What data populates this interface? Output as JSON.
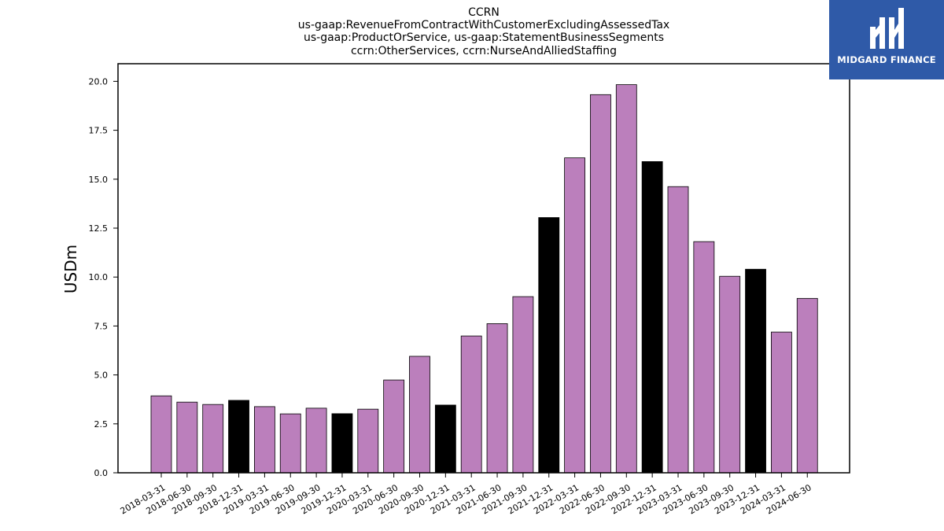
{
  "logo": {
    "text": "MIDGARD FINANCE"
  },
  "chart_data": {
    "type": "bar",
    "title_lines": [
      "CCRN",
      "us-gaap:RevenueFromContractWithCustomerExcludingAssessedTax",
      "us-gaap:ProductOrService, us-gaap:StatementBusinessSegments",
      "ccrn:OtherServices, ccrn:NurseAndAlliedStaffing"
    ],
    "xlabel": "",
    "ylabel": "USDm",
    "ylim": [
      0,
      20.9
    ],
    "yticks": [
      "0.0",
      "2.5",
      "5.0",
      "7.5",
      "10.0",
      "12.5",
      "15.0",
      "17.5",
      "20.0"
    ],
    "grid": false,
    "colors": {
      "quarter": "#bb7fbc",
      "year_end": "#000000",
      "edge": "#000000"
    },
    "categories": [
      "2018-03-31",
      "2018-06-30",
      "2018-09-30",
      "2018-12-31",
      "2019-03-31",
      "2019-06-30",
      "2019-09-30",
      "2019-12-31",
      "2020-03-31",
      "2020-06-30",
      "2020-09-30",
      "2020-12-31",
      "2021-03-31",
      "2021-06-30",
      "2021-09-30",
      "2021-12-31",
      "2022-03-31",
      "2022-06-30",
      "2022-09-30",
      "2022-12-31",
      "2023-03-31",
      "2023-06-30",
      "2023-09-30",
      "2023-12-31",
      "2024-03-31",
      "2024-06-30"
    ],
    "values": [
      3.93,
      3.61,
      3.49,
      3.7,
      3.38,
      3.01,
      3.3,
      3.02,
      3.25,
      4.74,
      5.95,
      3.46,
      6.99,
      7.62,
      9.0,
      13.04,
      16.09,
      19.32,
      19.83,
      15.9,
      14.62,
      11.81,
      10.04,
      10.4,
      7.19,
      8.91
    ],
    "year_end": [
      false,
      false,
      false,
      true,
      false,
      false,
      false,
      true,
      false,
      false,
      false,
      true,
      false,
      false,
      false,
      true,
      false,
      false,
      false,
      true,
      false,
      false,
      false,
      true,
      false,
      false
    ]
  }
}
